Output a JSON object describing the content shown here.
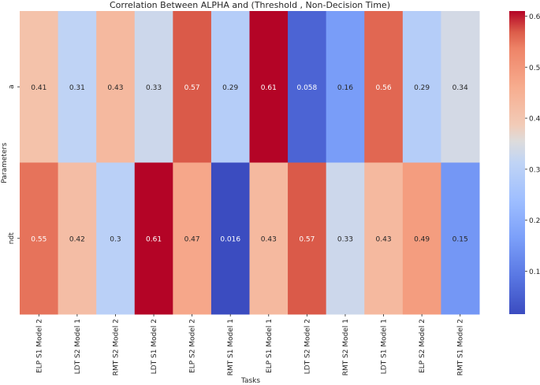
{
  "chart_data": {
    "type": "heatmap",
    "title": "Correlation Between ALPHA and (Threshold , Non-Decision Time)",
    "xlabel": "Tasks",
    "ylabel": "Parameters",
    "x_categories": [
      "ELP S1 Model 2",
      "LDT S2 Model 1",
      "RMT S2 Model 2",
      "LDT S1 Model 2",
      "ELP S2 Model 2",
      "RMT S1 Model 1",
      "ELP S1 Model 1",
      "LDT S2 Model 2",
      "RMT S2  Model 1",
      "LDT S1 Model 1",
      "ELP S2 Model 2",
      "RMT S1 Model 2"
    ],
    "y_categories": [
      "a",
      "ndt"
    ],
    "values": [
      [
        0.41,
        0.31,
        0.43,
        0.33,
        0.57,
        0.29,
        0.61,
        0.058,
        0.16,
        0.56,
        0.29,
        0.34
      ],
      [
        0.55,
        0.42,
        0.3,
        0.61,
        0.47,
        0.016,
        0.43,
        0.57,
        0.33,
        0.43,
        0.49,
        0.15
      ]
    ],
    "value_labels": [
      [
        "0.41",
        "0.31",
        "0.43",
        "0.33",
        "0.57",
        "0.29",
        "0.61",
        "0.058",
        "0.16",
        "0.56",
        "0.29",
        "0.34"
      ],
      [
        "0.55",
        "0.42",
        "0.3",
        "0.61",
        "0.47",
        "0.016",
        "0.43",
        "0.57",
        "0.33",
        "0.43",
        "0.49",
        "0.15"
      ]
    ],
    "colormap": "coolwarm",
    "vmin": 0.016,
    "vmax": 0.61,
    "colorbar_ticks": [
      0.1,
      0.2,
      0.3,
      0.4,
      0.5,
      0.6
    ],
    "colorbar_tick_labels": [
      "0.1",
      "0.2",
      "0.3",
      "0.4",
      "0.5",
      "0.6"
    ]
  }
}
